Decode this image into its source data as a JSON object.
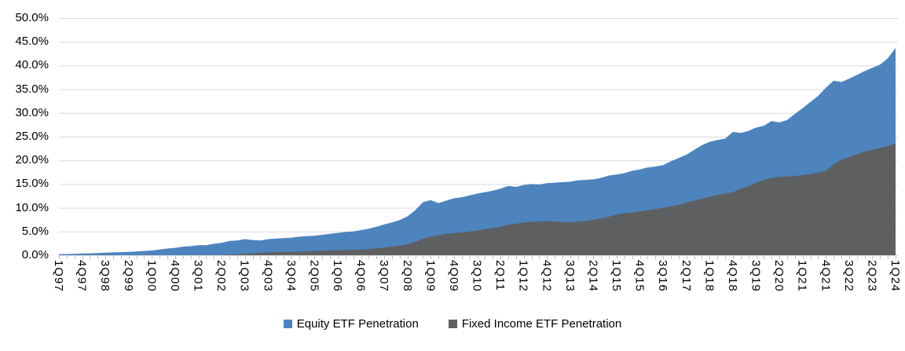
{
  "colors": {
    "background": "#FFFFFF",
    "gridline": "#D9D9D9",
    "axis_tick": "#BFBFBF",
    "text": "#000000",
    "equity": "#4D84BE",
    "fixed_income": "#5E5F61"
  },
  "chart_data": {
    "type": "area",
    "title": "",
    "overlapping": true,
    "grid": true,
    "legend_position": "bottom",
    "x_tick_interval": 3,
    "y_axis": {
      "min": 0,
      "max": 50,
      "step": 5,
      "tick_labels": [
        "0.0%",
        "5.0%",
        "10.0%",
        "15.0%",
        "20.0%",
        "25.0%",
        "30.0%",
        "35.0%",
        "40.0%",
        "45.0%",
        "50.0%"
      ]
    },
    "x_axis_tick_labels_shown": [
      "1Q97",
      "4Q97",
      "3Q98",
      "2Q99",
      "1Q00",
      "4Q00",
      "3Q01",
      "2Q02",
      "1Q03",
      "4Q03",
      "3Q04",
      "2Q05",
      "1Q06",
      "4Q06",
      "3Q07",
      "2Q08",
      "1Q09",
      "4Q09",
      "3Q10",
      "2Q11",
      "1Q12",
      "4Q12",
      "3Q13",
      "2Q14",
      "1Q15",
      "4Q15",
      "3Q16",
      "2Q17",
      "1Q18",
      "4Q18",
      "3Q19",
      "2Q20",
      "1Q21",
      "4Q21",
      "3Q22",
      "2Q23",
      "1Q24"
    ],
    "categories": [
      "1Q97",
      "2Q97",
      "3Q97",
      "4Q97",
      "1Q98",
      "2Q98",
      "3Q98",
      "4Q98",
      "1Q99",
      "2Q99",
      "3Q99",
      "4Q99",
      "1Q00",
      "2Q00",
      "3Q00",
      "4Q00",
      "1Q01",
      "2Q01",
      "3Q01",
      "4Q01",
      "1Q02",
      "2Q02",
      "3Q02",
      "4Q02",
      "1Q03",
      "2Q03",
      "3Q03",
      "4Q03",
      "1Q04",
      "2Q04",
      "3Q04",
      "4Q04",
      "1Q05",
      "2Q05",
      "3Q05",
      "4Q05",
      "1Q06",
      "2Q06",
      "3Q06",
      "4Q06",
      "1Q07",
      "2Q07",
      "3Q07",
      "4Q07",
      "1Q08",
      "2Q08",
      "3Q08",
      "4Q08",
      "1Q09",
      "2Q09",
      "3Q09",
      "4Q09",
      "1Q10",
      "2Q10",
      "3Q10",
      "4Q10",
      "1Q11",
      "2Q11",
      "3Q11",
      "4Q11",
      "1Q12",
      "2Q12",
      "3Q12",
      "4Q12",
      "1Q13",
      "2Q13",
      "3Q13",
      "4Q13",
      "1Q14",
      "2Q14",
      "3Q14",
      "4Q14",
      "1Q15",
      "2Q15",
      "3Q15",
      "4Q15",
      "1Q16",
      "2Q16",
      "3Q16",
      "4Q16",
      "1Q17",
      "2Q17",
      "3Q17",
      "4Q17",
      "1Q18",
      "2Q18",
      "3Q18",
      "4Q18",
      "1Q19",
      "2Q19",
      "3Q19",
      "4Q19",
      "1Q20",
      "2Q20",
      "3Q20",
      "4Q20",
      "1Q21",
      "2Q21",
      "3Q21",
      "4Q21",
      "1Q22",
      "2Q22",
      "3Q22",
      "4Q22",
      "1Q23",
      "2Q23",
      "3Q23",
      "4Q23",
      "1Q24"
    ],
    "series": [
      {
        "name": "Equity ETF Penetration",
        "color": "#4D84BE",
        "values": [
          0.2,
          0.25,
          0.3,
          0.35,
          0.4,
          0.45,
          0.55,
          0.6,
          0.65,
          0.7,
          0.8,
          0.9,
          1.0,
          1.2,
          1.4,
          1.55,
          1.8,
          1.9,
          2.1,
          2.1,
          2.4,
          2.6,
          3.0,
          3.1,
          3.4,
          3.2,
          3.1,
          3.4,
          3.5,
          3.6,
          3.7,
          3.9,
          4.0,
          4.1,
          4.3,
          4.5,
          4.7,
          4.9,
          5.0,
          5.3,
          5.6,
          6.0,
          6.5,
          6.9,
          7.4,
          8.2,
          9.5,
          11.2,
          11.6,
          11.0,
          11.5,
          12.0,
          12.2,
          12.6,
          13.0,
          13.3,
          13.6,
          14.0,
          14.6,
          14.4,
          14.8,
          15.0,
          14.9,
          15.2,
          15.3,
          15.4,
          15.5,
          15.8,
          15.9,
          16.0,
          16.3,
          16.8,
          17.0,
          17.3,
          17.8,
          18.1,
          18.5,
          18.7,
          19.0,
          19.8,
          20.5,
          21.2,
          22.2,
          23.2,
          23.9,
          24.3,
          24.6,
          26.0,
          25.8,
          26.2,
          26.9,
          27.3,
          28.3,
          28.0,
          28.5,
          29.8,
          31.0,
          32.3,
          33.6,
          35.3,
          36.8,
          36.5,
          37.2,
          38.0,
          38.8,
          39.5,
          40.2,
          41.5,
          43.7
        ]
      },
      {
        "name": "Fixed Income ETF Penetration",
        "color": "#5E5F61",
        "values": [
          0,
          0,
          0,
          0,
          0,
          0,
          0,
          0,
          0,
          0,
          0,
          0,
          0,
          0,
          0,
          0,
          0,
          0,
          0,
          0,
          0,
          0,
          0.1,
          0.2,
          0.3,
          0.4,
          0.5,
          0.6,
          0.65,
          0.7,
          0.7,
          0.75,
          0.8,
          0.9,
          0.95,
          1.0,
          1.05,
          1.1,
          1.15,
          1.2,
          1.3,
          1.45,
          1.6,
          1.8,
          2.0,
          2.3,
          2.8,
          3.5,
          3.9,
          4.2,
          4.5,
          4.7,
          4.8,
          5.0,
          5.2,
          5.5,
          5.7,
          6.0,
          6.4,
          6.6,
          6.9,
          7.0,
          7.1,
          7.2,
          7.1,
          7.0,
          6.9,
          7.1,
          7.2,
          7.5,
          7.8,
          8.1,
          8.6,
          8.8,
          9.0,
          9.2,
          9.5,
          9.7,
          10.0,
          10.3,
          10.6,
          11.1,
          11.5,
          11.9,
          12.3,
          12.7,
          13.0,
          13.3,
          14.0,
          14.5,
          15.3,
          15.9,
          16.3,
          16.5,
          16.6,
          16.7,
          16.9,
          17.1,
          17.4,
          17.8,
          19.2,
          20.1,
          20.7,
          21.3,
          21.8,
          22.2,
          22.6,
          23.0,
          23.6
        ]
      }
    ]
  }
}
